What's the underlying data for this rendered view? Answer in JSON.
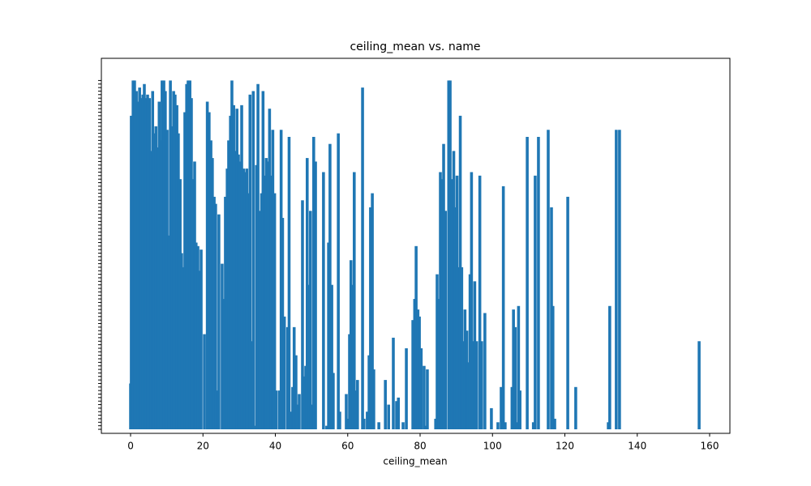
{
  "chart_data": {
    "type": "bar",
    "title": "ceiling_mean vs. name",
    "xlabel": "ceiling_mean",
    "color": "#1f77b4",
    "xlim": [
      -8.07,
      165.6
    ],
    "xticks": [
      0,
      20,
      40,
      60,
      80,
      100,
      120,
      140,
      160
    ],
    "ylim": [
      -1.15,
      105.3
    ],
    "categories": [
      null,
      null,
      null,
      null,
      null,
      null,
      null,
      null,
      null,
      null,
      null,
      null,
      null,
      null,
      null,
      null,
      null,
      null,
      null,
      null,
      null,
      null,
      null,
      null,
      null,
      null,
      null,
      null,
      null,
      null,
      null,
      null,
      null,
      null,
      null,
      null,
      null,
      null,
      null,
      null,
      null,
      null,
      null,
      null,
      null,
      null,
      null,
      null,
      null,
      null,
      null,
      null,
      null,
      null,
      null,
      null,
      null,
      null,
      null,
      null,
      null,
      null,
      null,
      null,
      null,
      null,
      null,
      null,
      null,
      null,
      null,
      null,
      null,
      null,
      null,
      null,
      null,
      null,
      null,
      null,
      null,
      null,
      null,
      null,
      null,
      null,
      null,
      null,
      null,
      null,
      null,
      null,
      null,
      null,
      null,
      null,
      null,
      null,
      null,
      null
    ],
    "x": [
      0,
      0.2,
      0.7,
      1.1,
      1.6,
      2,
      2.5,
      2.9,
      3.4,
      3.8,
      4.3,
      4.7,
      5.2,
      5.6,
      6.1,
      6.5,
      7,
      7.4,
      7.9,
      8.3,
      8.7,
      9.2,
      9.6,
      10.1,
      10.5,
      11,
      11.4,
      11.9,
      12.3,
      12.8,
      13.2,
      13.7,
      14.1,
      14.6,
      15,
      15.5,
      15.9,
      16.4,
      16.8,
      17.2,
      17.7,
      18.1,
      18.6,
      19,
      19.5,
      20.4,
      21.2,
      21.7,
      22.2,
      22.6,
      23.1,
      23.5,
      24,
      24.4,
      25.3,
      25.8,
      26.2,
      26.7,
      27.1,
      27.6,
      28,
      28.5,
      28.9,
      29.4,
      29.8,
      30.3,
      30.7,
      31.2,
      31.6,
      32.1,
      32.5,
      33,
      33.4,
      33.9,
      34.3,
      34.8,
      35.2,
      35.7,
      36.2,
      36.6,
      37.1,
      37.5,
      38,
      38.4,
      38.9,
      39.3,
      39.8,
      40.2,
      41.1,
      41.6,
      42,
      42.5,
      43.4,
      43.8,
      44.3,
      44.8,
      45.2,
      45.7,
      46.1,
      46.6,
      47.5,
      47.9,
      48.4,
      48.8,
      49.3,
      49.7,
      50.2,
      50.6,
      51.1,
      53.3,
      54.2,
      54.7,
      55.1,
      55.6,
      56,
      57.4,
      57.8,
      59.6,
      60,
      60.5,
      60.9,
      61.4,
      61.8,
      62.3,
      62.7,
      64.1,
      64.5,
      65.4,
      65.9,
      66.3,
      66.8,
      67.2,
      68.6,
      70.4,
      71.3,
      72.6,
      73.5,
      74,
      75.3,
      76.2,
      78,
      78.5,
      78.9,
      79.4,
      79.8,
      80.3,
      81.1,
      81.6,
      82,
      84.3,
      84.7,
      85.2,
      85.6,
      86.1,
      86.5,
      87,
      87.9,
      88.3,
      88.8,
      89.3,
      89.7,
      90.2,
      90.6,
      91.1,
      91.5,
      92,
      92.4,
      92.9,
      93.3,
      93.8,
      94.2,
      94.7,
      95.1,
      95.6,
      96.5,
      97,
      97.9,
      99.7,
      101.5,
      102.4,
      103,
      103.5,
      105.4,
      105.8,
      106.3,
      106.7,
      107.2,
      107.6,
      109.6,
      111.3,
      111.8,
      112.7,
      115.4,
      116.3,
      116.7,
      117.2,
      120.8,
      123,
      132,
      132.4,
      134.2,
      135.1,
      157.1
    ],
    "values": [
      13,
      89,
      99,
      99,
      96,
      93,
      97,
      94,
      95,
      98,
      94,
      95,
      94,
      79,
      96,
      84,
      86,
      80,
      93,
      82,
      99,
      99,
      96,
      85,
      55,
      99,
      86,
      96,
      95,
      92,
      84,
      71,
      50,
      46,
      90,
      98,
      99,
      99,
      94,
      71,
      76,
      53,
      52,
      45,
      51,
      27,
      93,
      90,
      82,
      77,
      66,
      64,
      11,
      61,
      47,
      37,
      66,
      74,
      82,
      89,
      99,
      92,
      79,
      91,
      78,
      76,
      92,
      74,
      73,
      74,
      67,
      95,
      25,
      96,
      1,
      75,
      98,
      62,
      67,
      96,
      72,
      77,
      76,
      91,
      72,
      85,
      67,
      11,
      11,
      85,
      60,
      32,
      29,
      83,
      5,
      12,
      29,
      21,
      7,
      10,
      65,
      15,
      18,
      77,
      41,
      62,
      7,
      83,
      76,
      73,
      1,
      53,
      81,
      41,
      16,
      84,
      5,
      10,
      3,
      27,
      48,
      41,
      73,
      11,
      14,
      97,
      3,
      5,
      21,
      63,
      67,
      17,
      2,
      14,
      7,
      26,
      8,
      9,
      2,
      23,
      31,
      37,
      52,
      34,
      32,
      23,
      18,
      1,
      17,
      3,
      44,
      37,
      73,
      71,
      81,
      62,
      99,
      99,
      71,
      79,
      63,
      72,
      46,
      89,
      46,
      25,
      34,
      28,
      19,
      44,
      73,
      25,
      42,
      25,
      72,
      25,
      33,
      6,
      2,
      12,
      69,
      2,
      12,
      34,
      29,
      2,
      35,
      11,
      83,
      2,
      72,
      83,
      85,
      63,
      35,
      3,
      66,
      12,
      2,
      35,
      85,
      85,
      25
    ]
  }
}
